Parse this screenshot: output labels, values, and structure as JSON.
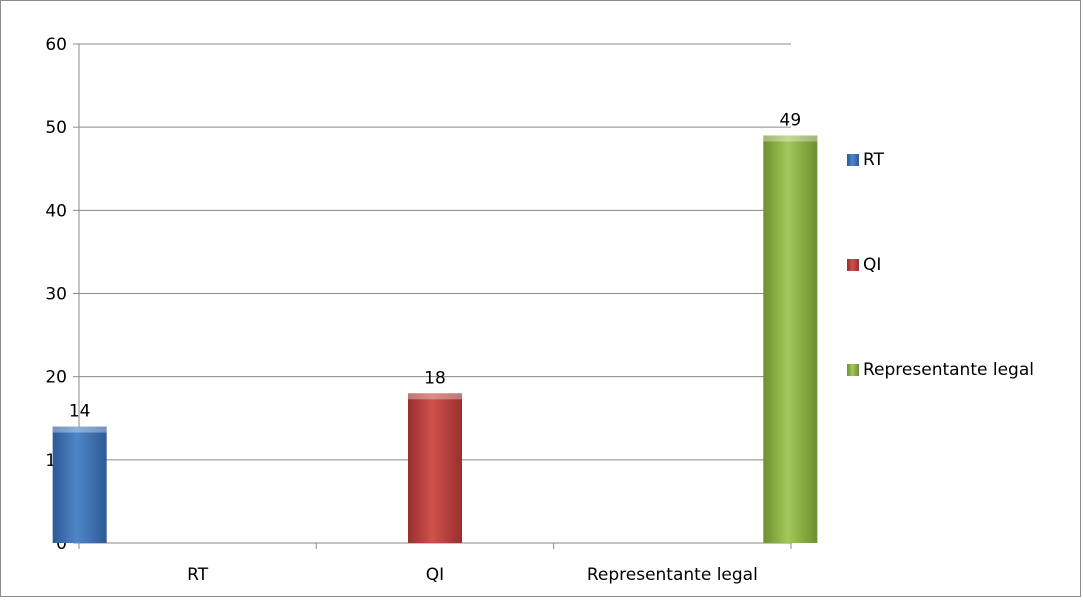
{
  "chart_data": {
    "type": "bar",
    "categories": [
      "RT",
      "QI",
      "Representante legal"
    ],
    "series": [
      {
        "name": "RT",
        "values": [
          14,
          null,
          null
        ],
        "color": "#4a7ebb"
      },
      {
        "name": "QI",
        "values": [
          null,
          18,
          null
        ],
        "color": "#be4b48"
      },
      {
        "name": "Representante legal",
        "values": [
          null,
          null,
          49
        ],
        "color": "#98b954"
      }
    ],
    "data_labels": [
      "14",
      "18",
      "49"
    ],
    "y_ticks": [
      "0",
      "10",
      "20",
      "30",
      "40",
      "50",
      "60"
    ],
    "ylim": [
      0,
      60
    ],
    "grid": true,
    "legend": {
      "position": "right",
      "items": [
        "RT",
        "QI",
        "Representante legal"
      ]
    }
  }
}
